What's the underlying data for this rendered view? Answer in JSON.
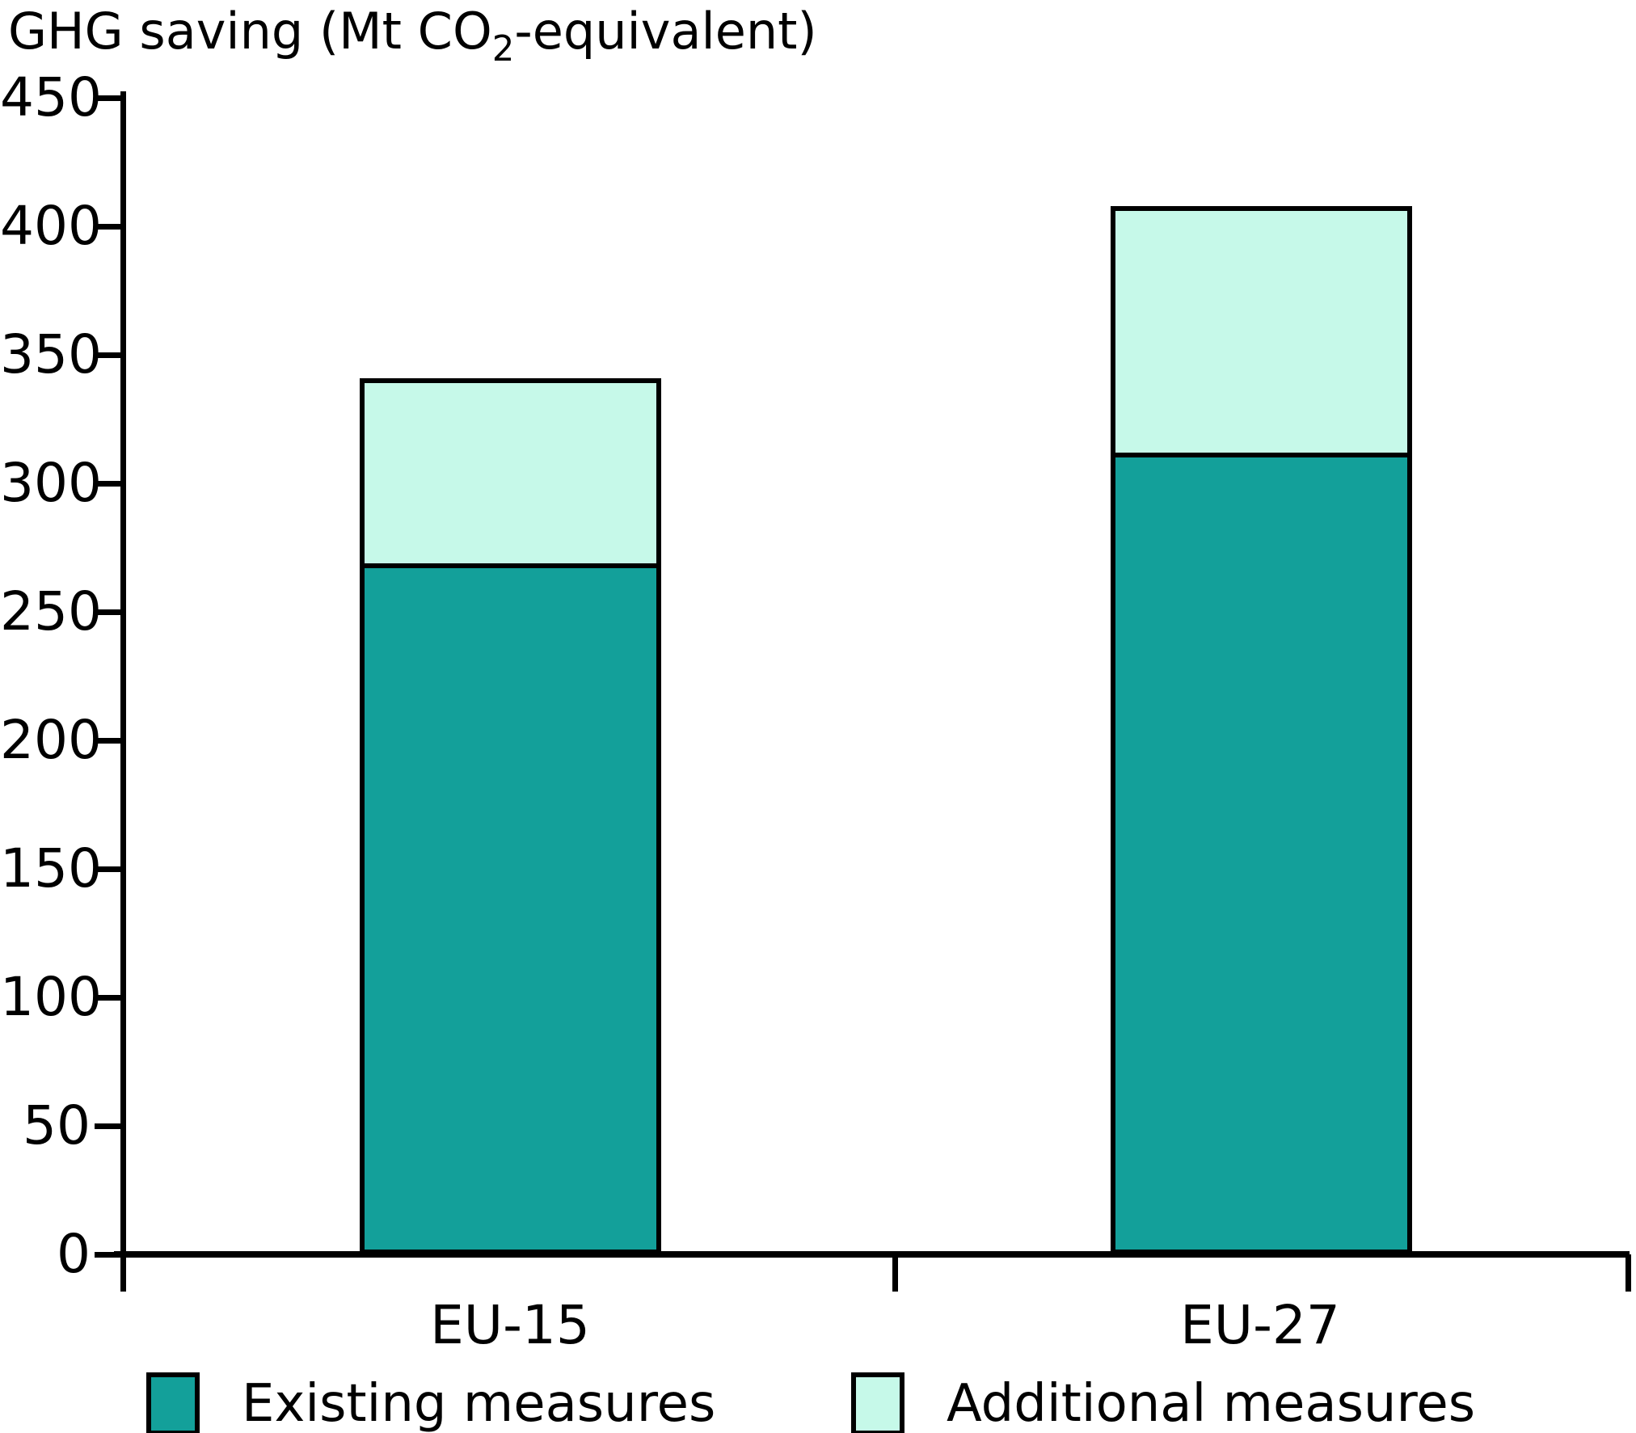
{
  "chart_data": {
    "type": "bar",
    "stacked": true,
    "title": {
      "prefix": "GHG saving (Mt CO",
      "sub": "2",
      "suffix": "-equivalent)"
    },
    "categories": [
      "EU-15",
      "EU-27"
    ],
    "series": [
      {
        "name": "Existing measures",
        "color": "#13A09A",
        "values": [
          268,
          311
        ]
      },
      {
        "name": "Additional measures",
        "color": "#C6F9E9",
        "values": [
          73,
          97
        ]
      }
    ],
    "totals": [
      341,
      408
    ],
    "ylim": [
      0,
      450
    ],
    "ytick_step": 50,
    "xlabel": "",
    "ylabel": "GHG saving (Mt CO2-equivalent)",
    "grid": false,
    "legend_position": "bottom",
    "axis_color": "#000000",
    "bar_outline_color": "#000000"
  }
}
